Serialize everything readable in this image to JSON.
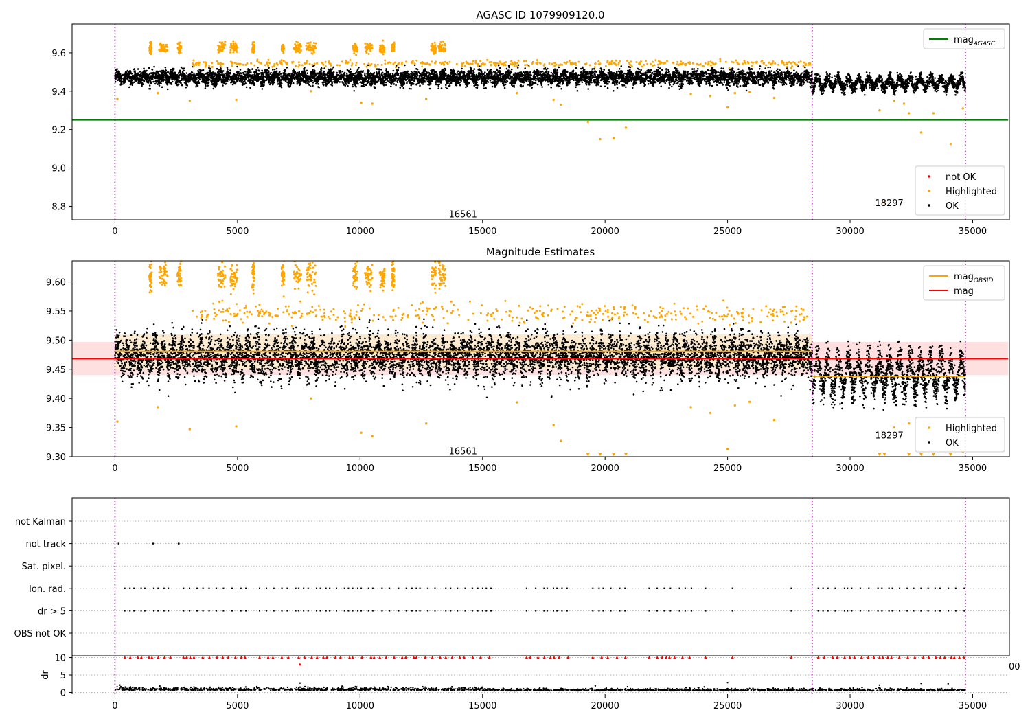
{
  "chart_data": [
    {
      "type": "scatter",
      "title": "AGASC ID 1079909120.0",
      "xlim": [
        -1750,
        36500
      ],
      "ylim": [
        8.73,
        9.75
      ],
      "xticks": [
        0,
        5000,
        10000,
        15000,
        20000,
        25000,
        30000,
        35000,
        40000
      ],
      "yticks": [
        8.8,
        9.0,
        9.2,
        9.4,
        9.6
      ],
      "ytick_format": 1,
      "obs_boundaries": [
        0,
        28450,
        34700
      ],
      "annotations": [
        {
          "text": "16561",
          "x": 14200,
          "y": 8.76
        },
        {
          "text": "18297",
          "x": 31600,
          "y": 8.82
        }
      ],
      "hlines": [
        {
          "name": "mag",
          "sub": "AGASC",
          "color": "#008000",
          "y": 9.25,
          "x0": -1750,
          "x1": 36450
        }
      ],
      "legends": [
        {
          "placement": "top-right",
          "entries": [
            {
              "label": "mag",
              "sub": "AGASC",
              "kind": "line",
              "color": "#008000"
            }
          ]
        },
        {
          "placement": "bottom-right",
          "entries": [
            {
              "label": "not OK",
              "kind": "dot",
              "color": "#ff0000"
            },
            {
              "label": "Highlighted",
              "kind": "dot",
              "color": "#ffa500"
            },
            {
              "label": "OK",
              "kind": "dot",
              "color": "#000000"
            }
          ]
        }
      ],
      "series": [
        {
          "name": "OK",
          "color": "#000000",
          "segments": [
            {
              "x": [
                0,
                28450
              ],
              "center": 9.472,
              "spread": 0.032,
              "osc": 0.013,
              "period": 380
            },
            {
              "x": [
                28450,
                34700
              ],
              "center": 9.442,
              "spread": 0.028,
              "osc": 0.025,
              "period": 420
            }
          ]
        },
        {
          "name": "Highlighted",
          "color": "#ffa500",
          "clusters_high": [
            [
              1400,
              1500
            ],
            [
              1800,
              2150
            ],
            [
              2550,
              2700
            ],
            [
              4200,
              4500
            ],
            [
              4700,
              5000
            ],
            [
              5600,
              5700
            ],
            [
              6800,
              6900
            ],
            [
              7300,
              7600
            ],
            [
              7800,
              8200
            ],
            [
              9700,
              9900
            ],
            [
              10200,
              10500
            ],
            [
              10800,
              11000
            ],
            [
              11300,
              11400
            ],
            [
              12900,
              13100
            ],
            [
              13200,
              13500
            ]
          ],
          "high_center": 9.625,
          "high_spread": 0.02,
          "band": {
            "x": [
              3100,
              28400
            ],
            "y": 9.545,
            "spread": 0.008
          },
          "points": [
            [
              100,
              9.36
            ],
            [
              1750,
              9.39
            ],
            [
              3050,
              9.35
            ],
            [
              4950,
              9.355
            ],
            [
              8000,
              9.4
            ],
            [
              10050,
              9.34
            ],
            [
              10500,
              9.335
            ],
            [
              12700,
              9.36
            ],
            [
              16400,
              9.39
            ],
            [
              17900,
              9.355
            ],
            [
              18200,
              9.33
            ],
            [
              19300,
              9.24
            ],
            [
              19800,
              9.15
            ],
            [
              20350,
              9.155
            ],
            [
              20850,
              9.21
            ],
            [
              23500,
              9.385
            ],
            [
              24300,
              9.375
            ],
            [
              25000,
              9.315
            ],
            [
              25300,
              9.39
            ],
            [
              25900,
              9.395
            ],
            [
              26900,
              9.365
            ],
            [
              27600,
              9.52
            ],
            [
              28100,
              9.53
            ],
            [
              31200,
              9.3
            ],
            [
              31400,
              8.82
            ],
            [
              31800,
              9.35
            ],
            [
              32400,
              9.285
            ],
            [
              32900,
              9.185
            ],
            [
              33400,
              9.285
            ],
            [
              34100,
              9.125
            ],
            [
              34600,
              9.31
            ],
            [
              32200,
              9.335
            ]
          ]
        }
      ]
    },
    {
      "type": "scatter",
      "title": "Magnitude Estimates",
      "xlim": [
        -1750,
        36500
      ],
      "ylim": [
        9.3,
        9.636
      ],
      "xticks": [
        0,
        5000,
        10000,
        15000,
        20000,
        25000,
        30000,
        35000,
        40000
      ],
      "yticks": [
        9.3,
        9.35,
        9.4,
        9.45,
        9.5,
        9.55,
        9.6
      ],
      "ytick_format": 2,
      "obs_boundaries": [
        0,
        28450,
        34700
      ],
      "annotations": [
        {
          "text": "16561",
          "x": 14200,
          "y": 9.31
        },
        {
          "text": "18297",
          "x": 31600,
          "y": 9.337
        }
      ],
      "bands": [
        {
          "color": "#ffe0e0",
          "y0": 9.44,
          "y1": 9.497,
          "x0": -1750,
          "x1": 36450
        },
        {
          "color": "#fcebd0",
          "y0": 9.451,
          "y1": 9.51,
          "x0": 0,
          "x1": 28450
        }
      ],
      "hlines": [
        {
          "name": "mag",
          "sub": "OBSID",
          "color": "#ffa500",
          "y": 9.481,
          "x0": 0,
          "x1": 28450
        },
        {
          "name": "mag",
          "sub": "OBSID",
          "color": "#ffa500",
          "y": 9.438,
          "x0": 28450,
          "x1": 34700
        },
        {
          "name": "mag",
          "sub": "",
          "color": "#ff0000",
          "y": 9.468,
          "x0": -1750,
          "x1": 36450
        }
      ],
      "legends": [
        {
          "placement": "top-right",
          "entries": [
            {
              "label": "mag",
              "sub": "OBSID",
              "kind": "line",
              "color": "#ffa500"
            },
            {
              "label": "mag",
              "sub": "",
              "kind": "line",
              "color": "#ff0000"
            }
          ]
        },
        {
          "placement": "bottom-right",
          "entries": [
            {
              "label": "Highlighted",
              "kind": "dot",
              "color": "#ffa500"
            },
            {
              "label": "OK",
              "kind": "dot",
              "color": "#000000"
            }
          ]
        }
      ],
      "series": [
        {
          "name": "OK",
          "color": "#000000",
          "segments": [
            {
              "x": [
                0,
                28450
              ],
              "center": 9.472,
              "spread": 0.032,
              "osc": 0.013,
              "period": 380
            },
            {
              "x": [
                28450,
                34700
              ],
              "center": 9.442,
              "spread": 0.028,
              "osc": 0.025,
              "period": 420
            }
          ]
        },
        {
          "name": "Highlighted",
          "color": "#ffa500",
          "clusters_high": [
            [
              1400,
              1500
            ],
            [
              1800,
              2150
            ],
            [
              2550,
              2700
            ],
            [
              4200,
              4500
            ],
            [
              4700,
              5000
            ],
            [
              5600,
              5700
            ],
            [
              6800,
              6900
            ],
            [
              7300,
              7600
            ],
            [
              7800,
              8200
            ],
            [
              9700,
              9900
            ],
            [
              10200,
              10500
            ],
            [
              10800,
              11000
            ],
            [
              11300,
              11400
            ],
            [
              12900,
              13100
            ],
            [
              13200,
              13500
            ]
          ],
          "high_center": 9.61,
          "high_spread": 0.02,
          "band": {
            "x": [
              3100,
              28400
            ],
            "y": 9.545,
            "spread": 0.008
          },
          "points": [
            [
              100,
              9.36
            ],
            [
              1750,
              9.385
            ],
            [
              3050,
              9.347
            ],
            [
              4950,
              9.352
            ],
            [
              8000,
              9.4
            ],
            [
              10050,
              9.341
            ],
            [
              10500,
              9.335
            ],
            [
              12700,
              9.357
            ],
            [
              16400,
              9.393
            ],
            [
              17900,
              9.354
            ],
            [
              18200,
              9.327
            ],
            [
              23500,
              9.385
            ],
            [
              24300,
              9.375
            ],
            [
              25000,
              9.313
            ],
            [
              25300,
              9.388
            ],
            [
              25900,
              9.394
            ],
            [
              26900,
              9.363
            ],
            [
              27600,
              9.53
            ],
            [
              28100,
              9.535
            ],
            [
              31800,
              9.35
            ],
            [
              32400,
              9.357
            ],
            [
              34600,
              9.308
            ]
          ],
          "offscale_low": [
            19300,
            19800,
            20350,
            20850,
            31200,
            31400,
            32400,
            32900,
            33400,
            34100
          ]
        }
      ]
    },
    {
      "type": "scatter",
      "title": "",
      "xlim": [
        -1750,
        36500
      ],
      "categories": [
        "OBS not OK",
        "dr > 5",
        "Ion. rad.",
        "Sat. pixel.",
        "not track",
        "not Kalman"
      ],
      "obs_boundaries": [
        0,
        28450,
        34700
      ],
      "flag_points": {
        "not track": [
          150,
          1550,
          2600
        ],
        "ion_ranges": [
          [
            400,
            2400
          ],
          [
            2800,
            5400
          ],
          [
            5900,
            7400
          ],
          [
            7500,
            9600
          ],
          [
            9700,
            12200
          ],
          [
            12300,
            13300
          ],
          [
            13500,
            15500
          ],
          [
            16800,
            18500
          ],
          [
            19500,
            20900
          ],
          [
            21800,
            23700
          ],
          [
            24100,
            24200
          ],
          [
            25200,
            25300
          ],
          [
            27600,
            27700
          ],
          [
            28700,
            34700
          ]
        ]
      },
      "dr_panel": {
        "ylabel": "dr",
        "yticks": [
          0,
          5,
          10
        ],
        "ylim": [
          -0.5,
          10.5
        ],
        "stray_label": "00",
        "ok_center": 0.9,
        "ok_spread": 0.7,
        "red_level": 10,
        "red_points": [
          [
            7550,
            8.0
          ]
        ]
      }
    }
  ]
}
